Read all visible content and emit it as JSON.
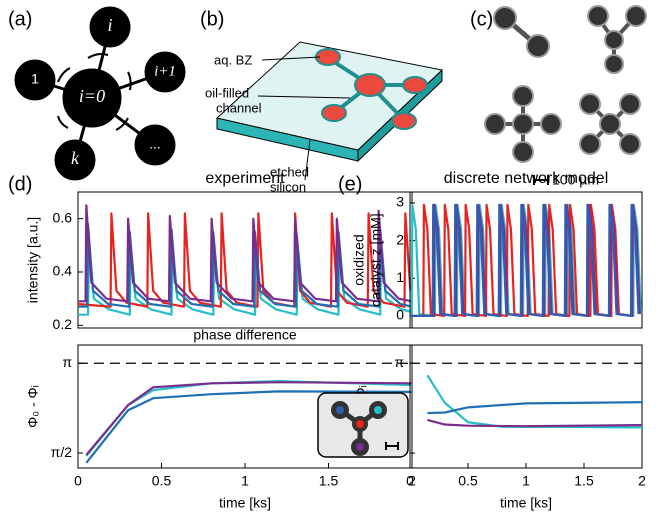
{
  "panel_labels": [
    "(a)",
    "(b)",
    "(c)",
    "(d)",
    "(e)"
  ],
  "diagram_a": {
    "center": "i=0",
    "nodes": [
      "i",
      "i+1",
      "...",
      "k",
      "1"
    ]
  },
  "diagram_b": {
    "labels": [
      [
        "aq. BZ"
      ],
      [
        "oil-filled",
        "channel"
      ],
      [
        "etched",
        "silicon"
      ]
    ]
  },
  "diagram_c": {
    "scale_bar": "100 µm"
  },
  "chart_data": [
    {
      "type": "line",
      "title": "experiment",
      "ylabel": "intensity [a.u.]",
      "xlim": [
        0,
        2
      ],
      "ylim": [
        0.19,
        0.7
      ],
      "yticks": [
        0.2,
        0.4,
        0.6
      ],
      "series": [
        {
          "color": "#26bfc9",
          "x": [
            0,
            0.06,
            0.065,
            0.095,
            0.185,
            0.31,
            0.315,
            0.345,
            0.435,
            0.56,
            0.565,
            0.595,
            0.685,
            0.81,
            0.815,
            0.845,
            0.935,
            1.06,
            1.065,
            1.095,
            1.185,
            1.31,
            1.315,
            1.345,
            1.435,
            1.56,
            1.565,
            1.595,
            1.685,
            1.81,
            1.815,
            1.845,
            1.935,
            2
          ],
          "values": [
            0.24,
            0.24,
            0.5,
            0.3,
            0.26,
            0.24,
            0.47,
            0.3,
            0.26,
            0.24,
            0.48,
            0.3,
            0.26,
            0.24,
            0.47,
            0.3,
            0.26,
            0.24,
            0.47,
            0.3,
            0.26,
            0.24,
            0.46,
            0.3,
            0.26,
            0.24,
            0.47,
            0.3,
            0.26,
            0.24,
            0.48,
            0.3,
            0.26,
            0.25
          ]
        },
        {
          "color": "#e8231f",
          "x": [
            0,
            0.195,
            0.2,
            0.23,
            0.29,
            0.415,
            0.42,
            0.45,
            0.51,
            0.635,
            0.64,
            0.67,
            0.73,
            0.855,
            0.86,
            0.89,
            0.95,
            1.075,
            1.08,
            1.11,
            1.17,
            1.295,
            1.3,
            1.33,
            1.39,
            1.515,
            1.52,
            1.55,
            1.61,
            1.735,
            1.74,
            1.77,
            1.83,
            1.955,
            1.96,
            1.99
          ],
          "values": [
            0.28,
            0.27,
            0.62,
            0.33,
            0.285,
            0.27,
            0.62,
            0.33,
            0.285,
            0.27,
            0.62,
            0.33,
            0.285,
            0.27,
            0.62,
            0.33,
            0.285,
            0.27,
            0.62,
            0.33,
            0.285,
            0.27,
            0.62,
            0.33,
            0.285,
            0.27,
            0.62,
            0.33,
            0.285,
            0.27,
            0.62,
            0.33,
            0.285,
            0.27,
            0.62,
            0.33
          ]
        },
        {
          "color": "#1f6fb5",
          "x": [
            0,
            0.055,
            0.06,
            0.09,
            0.18,
            0.305,
            0.31,
            0.34,
            0.43,
            0.555,
            0.56,
            0.59,
            0.68,
            0.805,
            0.81,
            0.84,
            0.93,
            1.055,
            1.06,
            1.09,
            1.18,
            1.305,
            1.31,
            1.34,
            1.43,
            1.555,
            1.56,
            1.59,
            1.68,
            1.805,
            1.81,
            1.84,
            1.93,
            2
          ],
          "values": [
            0.27,
            0.27,
            0.58,
            0.33,
            0.28,
            0.27,
            0.55,
            0.33,
            0.28,
            0.27,
            0.56,
            0.33,
            0.28,
            0.27,
            0.55,
            0.33,
            0.28,
            0.27,
            0.55,
            0.33,
            0.28,
            0.27,
            0.54,
            0.33,
            0.28,
            0.27,
            0.55,
            0.33,
            0.28,
            0.27,
            0.56,
            0.33,
            0.28,
            0.27
          ]
        },
        {
          "color": "#7b2d8e",
          "x": [
            0,
            0.045,
            0.05,
            0.08,
            0.17,
            0.295,
            0.3,
            0.33,
            0.42,
            0.545,
            0.55,
            0.58,
            0.67,
            0.795,
            0.8,
            0.83,
            0.92,
            1.045,
            1.05,
            1.08,
            1.17,
            1.295,
            1.3,
            1.33,
            1.42,
            1.545,
            1.55,
            1.58,
            1.67,
            1.795,
            1.8,
            1.83,
            1.92,
            2
          ],
          "values": [
            0.29,
            0.29,
            0.65,
            0.36,
            0.3,
            0.29,
            0.6,
            0.36,
            0.3,
            0.29,
            0.61,
            0.36,
            0.3,
            0.29,
            0.6,
            0.36,
            0.3,
            0.29,
            0.6,
            0.36,
            0.3,
            0.29,
            0.6,
            0.36,
            0.3,
            0.29,
            0.6,
            0.36,
            0.3,
            0.29,
            0.63,
            0.36,
            0.3,
            0.29
          ]
        }
      ]
    },
    {
      "type": "line",
      "annotation": "phase difference",
      "ylabel": "Φ₀ - Φᵢ",
      "xlabel": "time [ks]",
      "xlim": [
        0,
        2
      ],
      "ylim": [
        1.31,
        3.46
      ],
      "xticks": [
        0,
        0.5,
        1,
        1.5,
        2
      ],
      "yticks": [
        {
          "value": 1.5708,
          "label": "π/2"
        },
        {
          "value": 3.1416,
          "label": "π"
        }
      ],
      "series": [
        {
          "color": "#1f6fb5",
          "x": [
            0.05,
            0.3,
            0.45,
            0.8,
            1.2,
            2
          ],
          "values": [
            1.4,
            2.32,
            2.53,
            2.6,
            2.65,
            2.64
          ]
        },
        {
          "color": "#26bfc9",
          "x": [
            0.05,
            0.3,
            0.45,
            0.8,
            1.2,
            2
          ],
          "values": [
            1.52,
            2.41,
            2.67,
            2.79,
            2.83,
            2.76
          ]
        },
        {
          "color": "#7b2d8e",
          "x": [
            0.05,
            0.3,
            0.45,
            0.8,
            1.2,
            2
          ],
          "values": [
            1.54,
            2.41,
            2.72,
            2.79,
            2.81,
            2.79
          ]
        }
      ]
    },
    {
      "type": "line",
      "title": "discrete network model",
      "ylabel": [
        "oxidized",
        "catalyst z [mM]"
      ],
      "xlim": [
        0,
        2
      ],
      "ylim": [
        -0.32,
        3.29
      ],
      "yticks": [
        0,
        1,
        2,
        3
      ],
      "series": [
        {
          "color": "#26bfc9",
          "x": [
            0,
            0.015,
            0.02,
            0.05,
            0.08,
            0.215,
            0.22,
            0.25,
            0.28,
            0.405,
            0.41,
            0.44,
            0.47,
            0.595,
            0.6,
            0.63,
            0.66,
            0.785,
            0.79,
            0.82,
            0.85,
            0.975,
            0.98,
            1.01,
            1.04,
            1.165,
            1.17,
            1.2,
            1.23,
            1.355,
            1.36,
            1.39,
            1.42,
            1.545,
            1.55,
            1.58,
            1.61,
            1.735,
            1.74,
            1.77,
            1.8,
            1.925,
            1.93,
            1.96,
            1.99
          ],
          "values": [
            0,
            0,
            2.95,
            2.3,
            0.05,
            0,
            2.95,
            2.3,
            0.05,
            0,
            2.95,
            2.3,
            0.05,
            0,
            2.95,
            2.3,
            0.05,
            0,
            2.95,
            2.3,
            0.05,
            0,
            2.95,
            2.3,
            0.05,
            0,
            2.95,
            2.3,
            0.05,
            0,
            2.95,
            2.3,
            0.05,
            0,
            2.95,
            2.3,
            0.05,
            0,
            2.95,
            2.3,
            0.05,
            0,
            2.95,
            2.3,
            0.05
          ]
        },
        {
          "color": "#e8231f",
          "x": [
            0,
            0.115,
            0.12,
            0.15,
            0.18,
            0.295,
            0.3,
            0.33,
            0.36,
            0.475,
            0.48,
            0.51,
            0.54,
            0.655,
            0.66,
            0.69,
            0.72,
            0.835,
            0.84,
            0.87,
            0.9,
            1.015,
            1.02,
            1.05,
            1.08,
            1.195,
            1.2,
            1.23,
            1.26,
            1.375,
            1.38,
            1.41,
            1.44,
            1.555,
            1.56,
            1.59,
            1.62,
            1.735,
            1.74,
            1.77,
            1.8,
            1.915,
            1.92,
            1.95,
            1.98
          ],
          "values": [
            0,
            0,
            2.95,
            2.3,
            0.05,
            0,
            2.95,
            2.3,
            0.05,
            0,
            2.95,
            2.3,
            0.05,
            0,
            2.95,
            2.3,
            0.05,
            0,
            2.95,
            2.3,
            0.05,
            0,
            2.95,
            2.3,
            0.05,
            0,
            2.95,
            2.3,
            0.05,
            0,
            2.95,
            2.3,
            0.05,
            0,
            2.95,
            2.3,
            0.05,
            0,
            2.95,
            2.3,
            0.05,
            0,
            2.95,
            2.3,
            0.05
          ]
        },
        {
          "color": "#7b2d8e",
          "x": [
            0,
            0.205,
            0.21,
            0.24,
            0.27,
            0.395,
            0.4,
            0.43,
            0.46,
            0.585,
            0.59,
            0.62,
            0.65,
            0.775,
            0.78,
            0.81,
            0.84,
            0.965,
            0.97,
            1.0,
            1.03,
            1.155,
            1.16,
            1.19,
            1.22,
            1.345,
            1.35,
            1.38,
            1.41,
            1.535,
            1.54,
            1.57,
            1.6,
            1.725,
            1.73,
            1.76,
            1.79,
            1.915,
            1.92,
            1.95,
            1.98
          ],
          "values": [
            0,
            0,
            2.95,
            2.3,
            0.05,
            0,
            2.95,
            2.3,
            0.05,
            0,
            2.95,
            2.3,
            0.05,
            0,
            2.95,
            2.3,
            0.05,
            0,
            2.95,
            2.3,
            0.05,
            0,
            2.95,
            2.3,
            0.05,
            0,
            2.95,
            2.3,
            0.05,
            0,
            2.95,
            2.3,
            0.05,
            0,
            2.95,
            2.3,
            0.05,
            0,
            2.95,
            2.3,
            0.05
          ]
        },
        {
          "color": "#2f5fb3",
          "x": [
            0,
            0.195,
            0.2,
            0.23,
            0.26,
            0.385,
            0.39,
            0.42,
            0.45,
            0.575,
            0.58,
            0.61,
            0.64,
            0.765,
            0.77,
            0.8,
            0.83,
            0.955,
            0.96,
            0.99,
            1.02,
            1.145,
            1.15,
            1.18,
            1.21,
            1.335,
            1.34,
            1.37,
            1.4,
            1.525,
            1.53,
            1.56,
            1.59,
            1.715,
            1.72,
            1.75,
            1.78,
            1.905,
            1.91,
            1.94,
            1.97
          ],
          "values": [
            0,
            0,
            2.95,
            2.3,
            0.05,
            0,
            2.95,
            2.3,
            0.05,
            0,
            2.95,
            2.3,
            0.05,
            0,
            2.95,
            2.3,
            0.05,
            0,
            2.95,
            2.3,
            0.05,
            0,
            2.95,
            2.3,
            0.05,
            0,
            2.95,
            2.3,
            0.05,
            0,
            2.95,
            2.3,
            0.05,
            0,
            2.95,
            2.3,
            0.05,
            0,
            2.95,
            2.3,
            0.05
          ]
        }
      ]
    },
    {
      "type": "line",
      "ylabel": "Φ₀ - Φᵢ",
      "xlabel": "time [ks]",
      "xlim": [
        0,
        2
      ],
      "ylim": [
        1.31,
        3.46
      ],
      "xticks": [
        0,
        0.5,
        1,
        1.5,
        2
      ],
      "yticks": [
        {
          "value": 1.5708,
          "label": "π/2"
        },
        {
          "value": 3.1416,
          "label": "π"
        }
      ],
      "series": [
        {
          "color": "#26bfc9",
          "x": [
            0.15,
            0.3,
            0.5,
            0.8,
            1.2,
            2
          ],
          "values": [
            2.93,
            2.45,
            2.11,
            2.03,
            2.03,
            2.02
          ]
        },
        {
          "color": "#1f6fb5",
          "x": [
            0.15,
            0.3,
            0.5,
            1,
            2
          ],
          "values": [
            2.27,
            2.28,
            2.37,
            2.44,
            2.46
          ]
        },
        {
          "color": "#7b2d8e",
          "x": [
            0.15,
            0.3,
            0.5,
            1,
            2
          ],
          "values": [
            2.15,
            2.07,
            2.05,
            2.04,
            2.06
          ]
        }
      ]
    }
  ]
}
